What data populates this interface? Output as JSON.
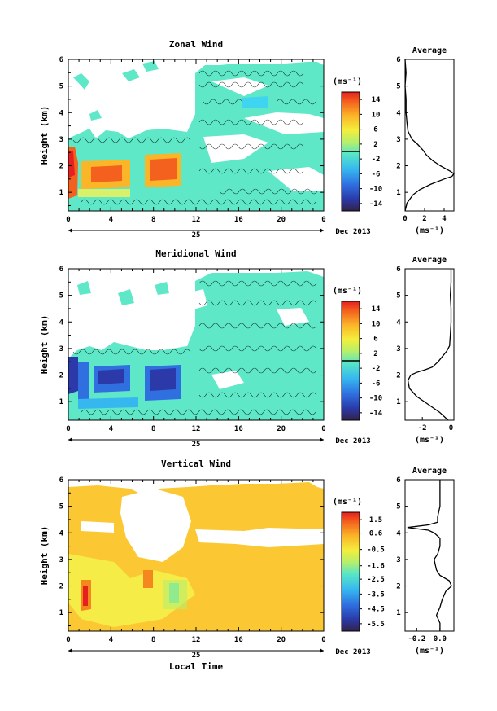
{
  "figure": {
    "date_label": "Dec 2013",
    "day_label": "25",
    "xlabel": "Local Time",
    "ylabel": "Height (km)",
    "unit": "(ms⁻¹)",
    "unit_bottom": "(ms⁻¹)",
    "avg_title": "Average"
  },
  "chart_data": [
    {
      "type": "heatmap",
      "title": "Zonal Wind",
      "xticks": [
        "0",
        "4",
        "8",
        "12",
        "16",
        "20",
        "0"
      ],
      "yticks": [
        "1",
        "2",
        "3",
        "4",
        "5",
        "6"
      ],
      "xlim": [
        0,
        24
      ],
      "ylim": [
        0.3,
        6
      ],
      "colorbar": {
        "ticks": [
          "14",
          "10",
          "6",
          "2",
          "-2",
          "-6",
          "-10",
          "-14"
        ],
        "range": [
          -16,
          16
        ],
        "zero_line": 0
      },
      "profile": {
        "title": "Average",
        "xticks": [
          "0",
          "2",
          "4"
        ],
        "xlim": [
          0,
          5
        ],
        "heights": [
          0.3,
          0.6,
          0.9,
          1.1,
          1.3,
          1.5,
          1.6,
          1.7,
          1.8,
          2.0,
          2.2,
          2.4,
          2.6,
          2.8,
          3.0,
          3.3,
          3.6,
          4.0,
          4.5,
          5.0,
          5.5,
          6.0
        ],
        "values": [
          0.0,
          0.2,
          0.8,
          1.5,
          2.6,
          4.0,
          4.8,
          5.0,
          4.6,
          3.6,
          2.8,
          2.2,
          1.8,
          1.3,
          0.7,
          0.3,
          0.2,
          0.1,
          0.1,
          0.0,
          0.1,
          0.0
        ]
      }
    },
    {
      "type": "heatmap",
      "title": "Meridional Wind",
      "xticks": [
        "0",
        "4",
        "8",
        "12",
        "16",
        "20",
        "0"
      ],
      "yticks": [
        "1",
        "2",
        "3",
        "4",
        "5",
        "6"
      ],
      "xlim": [
        0,
        24
      ],
      "ylim": [
        0.3,
        6
      ],
      "colorbar": {
        "ticks": [
          "14",
          "10",
          "6",
          "2",
          "-2",
          "-6",
          "-10",
          "-14"
        ],
        "range": [
          -16,
          16
        ],
        "zero_line": 0
      },
      "profile": {
        "title": "Average",
        "xticks": [
          "-2",
          "0"
        ],
        "xlim": [
          -3.2,
          0.2
        ],
        "heights": [
          0.3,
          0.6,
          0.9,
          1.2,
          1.5,
          1.8,
          2.0,
          2.1,
          2.2,
          2.3,
          2.5,
          2.7,
          2.9,
          3.1,
          3.5,
          4.0,
          4.5,
          5.0,
          5.5,
          6.0
        ],
        "values": [
          -0.2,
          -0.8,
          -1.6,
          -2.4,
          -2.9,
          -3.0,
          -2.8,
          -2.4,
          -1.8,
          -1.3,
          -0.9,
          -0.6,
          -0.3,
          -0.1,
          -0.05,
          0.0,
          0.0,
          -0.05,
          0.0,
          0.0
        ]
      }
    },
    {
      "type": "heatmap",
      "title": "Vertical Wind",
      "xticks": [
        "0",
        "4",
        "8",
        "12",
        "16",
        "20",
        "0"
      ],
      "yticks": [
        "1",
        "2",
        "3",
        "4",
        "5",
        "6"
      ],
      "xlim": [
        0,
        24
      ],
      "ylim": [
        0.3,
        6
      ],
      "colorbar": {
        "ticks": [
          "1.5",
          "0.6",
          "-0.5",
          "-1.6",
          "-2.5",
          "-3.5",
          "-4.5",
          "-5.5"
        ],
        "range": [
          -6,
          2
        ],
        "zero_line": null
      },
      "profile": {
        "title": "Average",
        "xticks": [
          "-0.2",
          "0.0"
        ],
        "xlim": [
          -0.3,
          0.12
        ],
        "heights": [
          0.3,
          0.6,
          0.9,
          1.2,
          1.5,
          1.8,
          2.0,
          2.2,
          2.4,
          2.6,
          2.8,
          3.0,
          3.2,
          3.5,
          3.8,
          4.0,
          4.1,
          4.2,
          4.3,
          4.4,
          4.6,
          5.0,
          5.5,
          6.0
        ],
        "values": [
          0.0,
          0.0,
          -0.03,
          0.0,
          0.02,
          0.05,
          0.1,
          0.08,
          0.0,
          -0.03,
          -0.04,
          -0.05,
          -0.02,
          0.0,
          0.0,
          -0.05,
          -0.1,
          -0.28,
          -0.1,
          -0.02,
          -0.02,
          0.0,
          0.0,
          0.0
        ]
      }
    }
  ]
}
